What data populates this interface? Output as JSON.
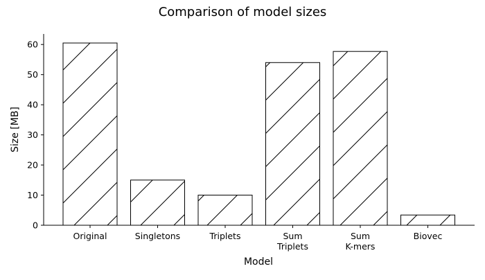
{
  "chart_data": {
    "type": "bar",
    "title": "Comparison of model sizes",
    "xlabel": "Model",
    "ylabel": "Size [MB]",
    "categories": [
      [
        "Original"
      ],
      [
        "Singletons"
      ],
      [
        "Triplets"
      ],
      [
        "Sum",
        "Triplets"
      ],
      [
        "Sum",
        "K-mers"
      ],
      [
        "Biovec"
      ]
    ],
    "values": [
      60.5,
      15.0,
      10.0,
      54.0,
      57.7,
      3.4
    ],
    "ylim": [
      0,
      63.5
    ],
    "yticks": [
      0,
      10,
      20,
      30,
      40,
      50,
      60
    ],
    "grid": false,
    "legend": "none",
    "bar_fill": "#ffffff",
    "bar_edge": "#000000",
    "bar_hatch": "/"
  }
}
